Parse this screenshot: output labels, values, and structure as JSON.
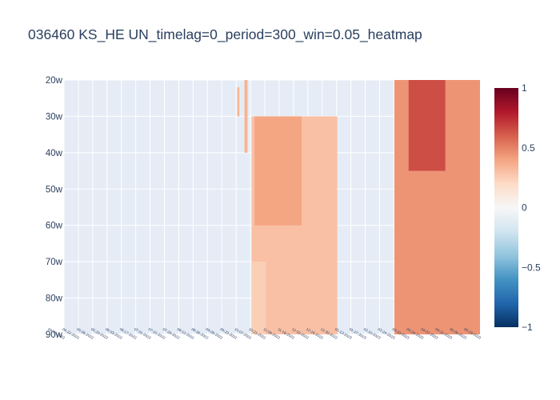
{
  "chart_data": {
    "type": "heatmap",
    "title": "036460 KS_HE UN_timelag=0_period=300_win=0.05_heatmap",
    "xlabel": "",
    "ylabel": "",
    "y_categories": [
      "20w",
      "30w",
      "40w",
      "50w",
      "60w",
      "70w",
      "80w",
      "90w"
    ],
    "x_tick_labels": [
      "04-06-2022",
      "04-22-2022",
      "05-06-2022",
      "05-20-2022",
      "06-03-2022",
      "06-17-2022",
      "07-01-2022",
      "07-15-2022",
      "07-29-2022",
      "08-12-2022",
      "08-26-2022",
      "09-09-2022",
      "09-23-2022",
      "10-07-2022",
      "10-21-2022",
      "11-04-2022",
      "11-18-2022",
      "12-02-2022",
      "12-16-2022",
      "12-30-2022",
      "01-13-2023",
      "01-27-2023",
      "02-10-2023",
      "02-24-2023",
      "03-10-2023",
      "03-24-2023",
      "04-07-2023",
      "04-21-2023",
      "05-05-2023",
      "05-19-2023"
    ],
    "colorscale": "RdBu_r",
    "zlim": [
      -1,
      1
    ],
    "colorbar_ticks": [
      1,
      0.5,
      0,
      -0.5,
      -1
    ],
    "colorbar_tick_labels": [
      "1",
      "0.5",
      "0",
      "−0.5",
      "−1"
    ],
    "grid": true,
    "bands": [
      {
        "x": [
          "09-23-2022",
          "09-25-2022"
        ],
        "y": [
          "22w",
          "30w"
        ],
        "z": 0.35
      },
      {
        "x": [
          "09-30-2022",
          "10-03-2022"
        ],
        "y": [
          "20w",
          "40w"
        ],
        "z": 0.35
      },
      {
        "x": [
          "10-07-2022",
          "12-30-2022"
        ],
        "y": [
          "30w",
          "90w"
        ],
        "z": 0.3
      },
      {
        "x": [
          "10-10-2022",
          "11-25-2022"
        ],
        "y": [
          "30w",
          "60w"
        ],
        "z": 0.4
      },
      {
        "x": [
          "10-07-2022",
          "10-21-2022"
        ],
        "y": [
          "70w",
          "90w"
        ],
        "z": 0.25
      },
      {
        "x": [
          "02-24-2023",
          "05-19-2023"
        ],
        "y": [
          "20w",
          "90w"
        ],
        "z": 0.45
      },
      {
        "x": [
          "03-10-2023",
          "04-15-2023"
        ],
        "y": [
          "20w",
          "45w"
        ],
        "z": 0.65
      }
    ]
  }
}
